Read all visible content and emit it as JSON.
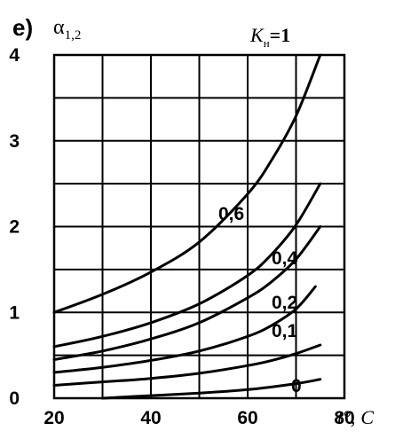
{
  "chart_data": {
    "type": "line",
    "panel_label": "e)",
    "ylabel_main": "α",
    "ylabel_sub": "1,2",
    "xlabel_var": "t°,",
    "xlabel_unit": "C",
    "legend_var": "K",
    "legend_sub": "н",
    "legend_value": "=1",
    "xlim": [
      20,
      80
    ],
    "ylim": [
      0,
      4
    ],
    "x_ticks": [
      "20",
      "40",
      "60",
      "80"
    ],
    "y_ticks": [
      "0",
      "1",
      "2",
      "3",
      "4"
    ],
    "grid": true,
    "series": [
      {
        "name": "1",
        "x": [
          20,
          30,
          40,
          50,
          60,
          65,
          70,
          75
        ],
        "y": [
          1.0,
          1.21,
          1.47,
          1.82,
          2.38,
          2.78,
          3.29,
          4.0
        ]
      },
      {
        "name": "0,6",
        "x": [
          20,
          30,
          40,
          50,
          60,
          65,
          70,
          75
        ],
        "y": [
          0.6,
          0.72,
          0.88,
          1.1,
          1.43,
          1.68,
          2.02,
          2.5
        ]
      },
      {
        "name": "0,4",
        "x": [
          20,
          30,
          40,
          50,
          60,
          65,
          70,
          75
        ],
        "y": [
          0.45,
          0.55,
          0.69,
          0.88,
          1.17,
          1.36,
          1.62,
          2.0
        ]
      },
      {
        "name": "0,2",
        "x": [
          20,
          30,
          40,
          50,
          60,
          65,
          70,
          74
        ],
        "y": [
          0.3,
          0.36,
          0.44,
          0.55,
          0.72,
          0.85,
          1.04,
          1.3
        ]
      },
      {
        "name": "0,1",
        "x": [
          20,
          30,
          40,
          50,
          60,
          65,
          70,
          75
        ],
        "y": [
          0.15,
          0.19,
          0.23,
          0.29,
          0.38,
          0.44,
          0.52,
          0.62
        ]
      },
      {
        "name": "0",
        "x": [
          30,
          40,
          50,
          60,
          70,
          75
        ],
        "y": [
          0.0,
          0.03,
          0.06,
          0.1,
          0.17,
          0.22
        ]
      }
    ]
  }
}
